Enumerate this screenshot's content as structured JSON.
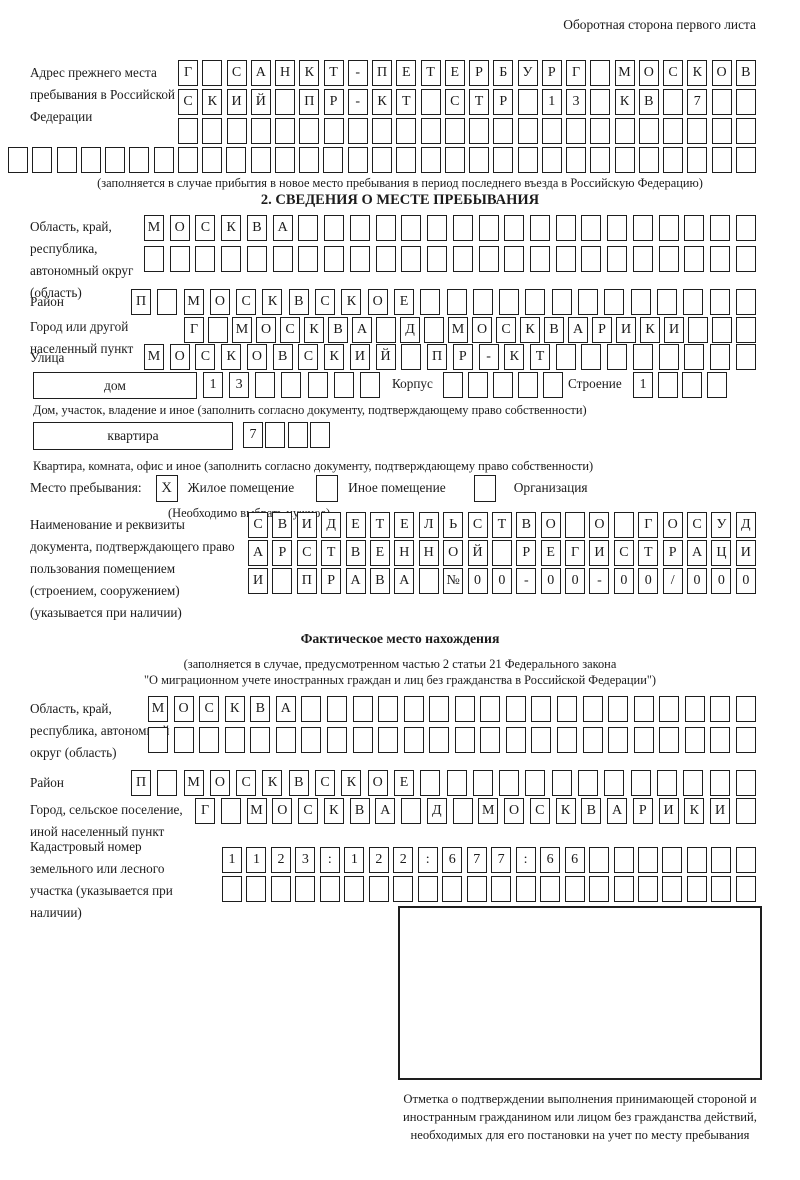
{
  "header": {
    "note": "Оборотная сторона первого листа"
  },
  "prev_address": {
    "label": "Адрес прежнего места пребывания в Российской Федерации",
    "row1": "Г САНКТ-ПЕТЕРБУРГ МОСКОВ",
    "row2": "СКИЙ ПР-КТ СТР 13 КВ 7  ",
    "row3": "                        ",
    "row4": "                               ",
    "caption": "(заполняется в случае прибытия в новое место пребывания в период последнего въезда в Российскую Федерацию)"
  },
  "section2": {
    "title": "2. СВЕДЕНИЯ О МЕСТЕ ПРЕБЫВАНИЯ",
    "region": {
      "label": "Область, край, республика, автономный округ (область)",
      "row1": "МОСКВА                  ",
      "row2": "                        "
    },
    "district": {
      "label": "Район",
      "row": "П МОСКВСКОЕ             "
    },
    "city": {
      "label": "Город или другой населенный пункт",
      "row": "Г МОСКВА Д МОСКВАРИКИ   "
    },
    "street": {
      "label": "Улица",
      "row": "МОСКОВСКИЙ ПР-КТ        "
    },
    "house": {
      "box_label": "дом",
      "cells": "13     ",
      "korpus_label": "Корпус",
      "korpus_cells": "     ",
      "stroenie_label": "Строение",
      "stroenie_cells": "1   ",
      "caption": "Дом, участок, владение и иное (заполнить согласно документу, подтверждающему право собственности)"
    },
    "apartment": {
      "box_label": "квартира",
      "cells": "7   ",
      "caption": "Квартира, комната, офис и иное (заполнить согласно документу, подтверждающему право собственности)"
    },
    "stay_type": {
      "label": "Место пребывания:",
      "options": [
        {
          "mark": "X",
          "label": "Жилое помещение"
        },
        {
          "mark": "",
          "label": "Иное помещение"
        },
        {
          "mark": "",
          "label": "Организация"
        }
      ],
      "note": "(Необходимо выбрать нужное)"
    },
    "document": {
      "label": "Наименование и реквизиты документа, подтверждающего право пользования помещением (строением, сооружением) (указывается при наличии)",
      "row1": "СВИДЕТЕЛЬСТВО О ГОСУД",
      "row2": "АРСТВЕННОЙ РЕГИСТРАЦИ",
      "row3": "И ПРАВА №00-00-00/000"
    }
  },
  "actual_location": {
    "title": "Фактическое место нахождения",
    "caption1": "(заполняется в случае, предусмотренном частью 2 статьи 21 Федерального закона",
    "caption2": "\"О миграционном учете иностранных граждан и лиц без гражданства в Российской Федерации\")",
    "region": {
      "label": "Область, край, республика, автономный округ (область)",
      "row1": "МОСКВА                  ",
      "row2": "                        "
    },
    "district": {
      "label": "Район",
      "row": "П МОСКВСКОЕ             "
    },
    "city": {
      "label": "Город, сельское поселение, иной населенный пункт",
      "row": "Г МОСКВА Д МОСКВАРИКИ "
    },
    "cadastral": {
      "label": "Кадастровый номер земельного или лесного участка (указывается при наличии)",
      "row1": "1123:122:677:66       ",
      "row2": "                      "
    },
    "stamp_caption": "Отметка о подтверждении выполнения принимающей стороной и иностранным гражданином или лицом без гражданства действий, необходимых для его постановки на учет по месту пребывания"
  }
}
